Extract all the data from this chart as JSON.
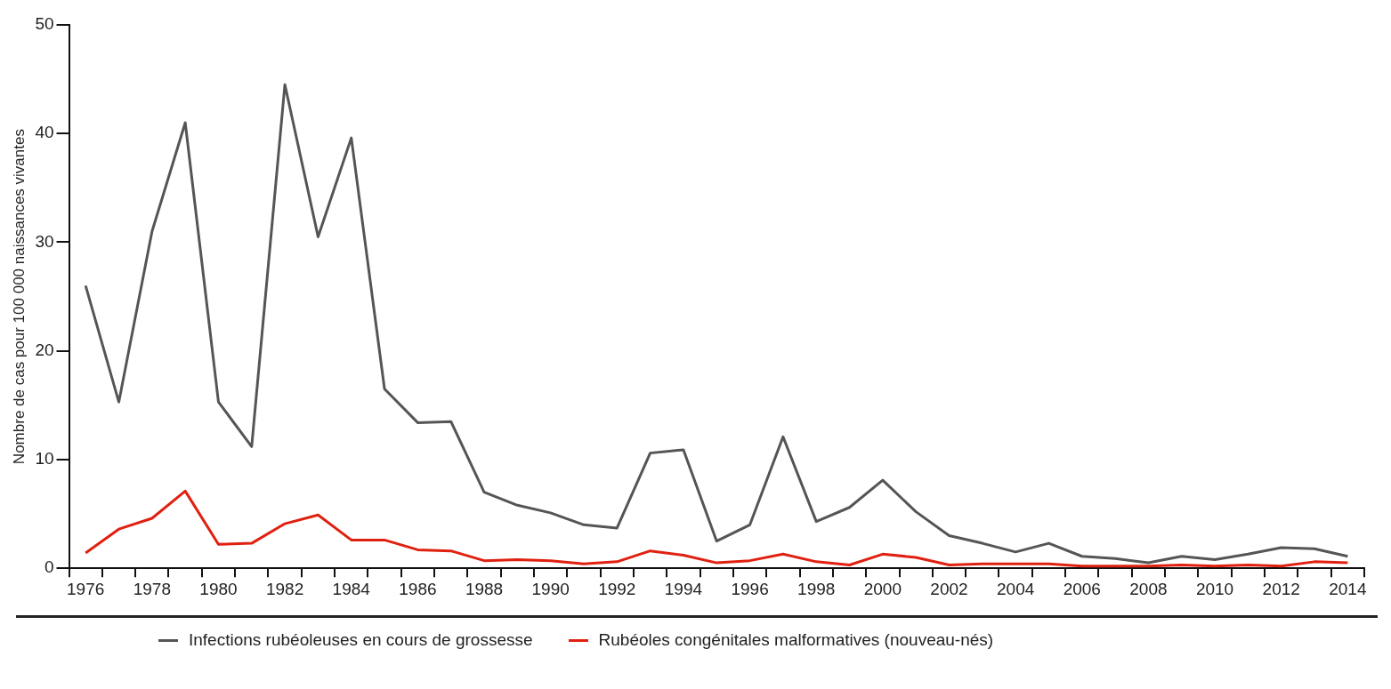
{
  "chart_data": {
    "type": "line",
    "ylabel": "Nombre de cas pour 100 000 naissances vivantes",
    "categories": [
      "1976",
      null,
      "1978",
      null,
      "1980",
      null,
      "1982",
      null,
      "1984",
      null,
      "1986",
      null,
      "1988",
      null,
      "1990",
      null,
      "1992",
      null,
      "1994",
      null,
      "1996",
      null,
      "1998",
      null,
      "2000",
      null,
      "2002",
      null,
      "2004",
      null,
      "2006",
      null,
      "2008",
      null,
      "2010",
      null,
      "2012",
      null,
      "2014"
    ],
    "series": [
      {
        "name": "Infections rubéoleuses en cours de grossesse",
        "color": "#555555",
        "values": [
          26,
          15.3,
          31,
          41,
          15.3,
          11.2,
          44.5,
          30.5,
          39.6,
          16.5,
          13.4,
          13.5,
          7,
          5.8,
          5.1,
          4,
          3.7,
          10.6,
          10.9,
          2.5,
          4,
          12.1,
          4.3,
          5.6,
          8.1,
          5.2,
          3,
          2.3,
          1.5,
          2.3,
          1.1,
          0.9,
          0.5,
          1.1,
          0.8,
          1.3,
          1.9,
          1.8,
          1.1
        ]
      },
      {
        "name": "Rubéoles congénitales malformatives (nouveau-nés)",
        "color": "#e02010",
        "values": [
          1.4,
          3.6,
          4.6,
          7.1,
          2.2,
          2.3,
          4.1,
          4.9,
          2.6,
          2.6,
          1.7,
          1.6,
          0.7,
          0.8,
          0.7,
          0.4,
          0.6,
          1.6,
          1.2,
          0.5,
          0.7,
          1.3,
          0.6,
          0.3,
          1.3,
          1,
          0.3,
          0.4,
          0.4,
          0.4,
          0.2,
          0.2,
          0.2,
          0.3,
          0.2,
          0.3,
          0.2,
          0.6,
          0.5
        ]
      }
    ],
    "ylim": [
      0,
      50
    ],
    "yticks": [
      0,
      10,
      20,
      30,
      40,
      50
    ],
    "grid": false,
    "legend": "bottom",
    "marker": "none",
    "line_style": "solid"
  }
}
